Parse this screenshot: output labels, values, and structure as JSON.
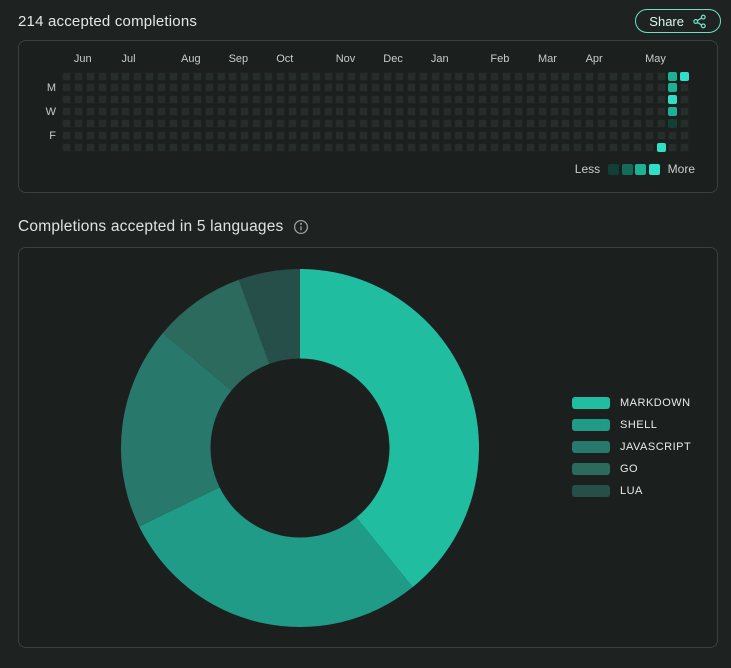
{
  "header": {
    "title": "214 accepted completions",
    "share_label": "Share"
  },
  "colors": {
    "page_bg": "#1e2322",
    "card_bg": "#1b201f",
    "card_border": "#3a403d",
    "text_primary": "#e4e7e5",
    "text_muted": "#c7ccca",
    "accent_mint": "#6fe0c6"
  },
  "chart_data": [
    {
      "type": "heatmap",
      "title": "214 accepted completions",
      "weeks": 53,
      "rows": 7,
      "month_labels": [
        {
          "label": "Jun",
          "week": 1
        },
        {
          "label": "Jul",
          "week": 5
        },
        {
          "label": "Aug",
          "week": 10
        },
        {
          "label": "Sep",
          "week": 14
        },
        {
          "label": "Oct",
          "week": 18
        },
        {
          "label": "Nov",
          "week": 23
        },
        {
          "label": "Dec",
          "week": 27
        },
        {
          "label": "Jan",
          "week": 31
        },
        {
          "label": "Feb",
          "week": 36
        },
        {
          "label": "Mar",
          "week": 40
        },
        {
          "label": "Apr",
          "week": 44
        },
        {
          "label": "May",
          "week": 49
        }
      ],
      "day_labels": [
        {
          "label": "M",
          "row": 1
        },
        {
          "label": "W",
          "row": 3
        },
        {
          "label": "F",
          "row": 5
        }
      ],
      "level_colors": [
        "#262d2a",
        "#123f35",
        "#156b5b",
        "#1cb296",
        "#30e0c4"
      ],
      "cells": [
        {
          "week": 50,
          "day": 6,
          "level": 4
        },
        {
          "week": 51,
          "day": 0,
          "level": 3
        },
        {
          "week": 51,
          "day": 1,
          "level": 3
        },
        {
          "week": 51,
          "day": 2,
          "level": 4
        },
        {
          "week": 51,
          "day": 3,
          "level": 3
        },
        {
          "week": 51,
          "day": 4,
          "level": 1
        },
        {
          "week": 52,
          "day": 0,
          "level": 4
        }
      ],
      "legend": {
        "less": "Less",
        "more": "More"
      }
    },
    {
      "type": "pie",
      "title": "Completions accepted in 5 languages",
      "total": 214,
      "inner_radius_ratio": 0.5,
      "legend_position": "right",
      "series": [
        {
          "name": "MARKDOWN",
          "percent": 39.2,
          "start_deg": 0,
          "end_deg": 141,
          "color": "#20bda0"
        },
        {
          "name": "SHELL",
          "percent": 28.6,
          "start_deg": 141,
          "end_deg": 244,
          "color": "#1f9b88"
        },
        {
          "name": "JAVASCRIPT",
          "percent": 18.3,
          "start_deg": 244,
          "end_deg": 310,
          "color": "#28786c"
        },
        {
          "name": "GO",
          "percent": 8.3,
          "start_deg": 310,
          "end_deg": 340,
          "color": "#2c6a5e"
        },
        {
          "name": "LUA",
          "percent": 5.6,
          "start_deg": 340,
          "end_deg": 360,
          "color": "#254f48"
        }
      ]
    }
  ]
}
